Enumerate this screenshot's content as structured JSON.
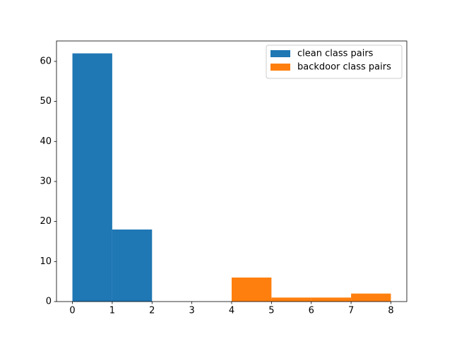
{
  "chart_data": {
    "type": "histogram",
    "series": [
      {
        "name": "clean class pairs",
        "color": "#1f77b4",
        "bins": [
          0,
          1,
          2
        ],
        "values": [
          62,
          18
        ]
      },
      {
        "name": "backdoor class pairs",
        "color": "#ff7f0e",
        "bins": [
          4,
          5,
          6,
          7,
          8
        ],
        "values": [
          6,
          1,
          1,
          2
        ]
      }
    ],
    "xlim": [
      -0.4,
      8.4
    ],
    "xticks": [
      0,
      1,
      2,
      3,
      4,
      5,
      6,
      7,
      8
    ],
    "ylim": [
      0,
      65.1
    ],
    "yticks": [
      0,
      10,
      20,
      30,
      40,
      50,
      60
    ],
    "grid": false,
    "legend": "upper right"
  }
}
